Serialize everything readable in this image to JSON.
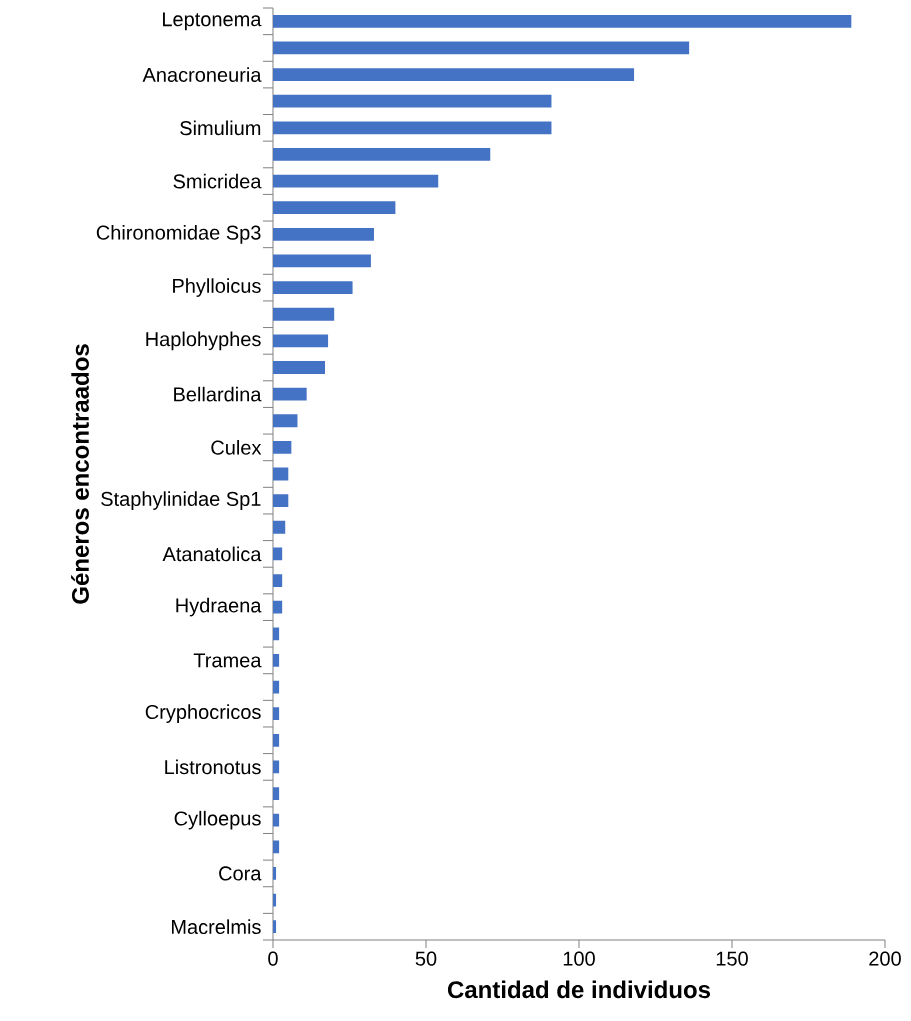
{
  "chart_data": {
    "type": "bar",
    "orientation": "horizontal",
    "xlabel": "Cantidad de individuos",
    "ylabel": "Géneros encontraados",
    "color": "#4472c4",
    "categories": [
      "Leptonema",
      null,
      "Anacroneuria",
      null,
      "Simulium",
      null,
      "Smicridea",
      null,
      "Chironomidae Sp3",
      null,
      "Phylloicus",
      null,
      "Haplohyphes",
      null,
      "Bellardina",
      null,
      "Culex",
      null,
      "Staphylinidae Sp1",
      null,
      "Atanatolica",
      null,
      "Hydraena",
      null,
      "Tramea",
      null,
      "Cryphocricos",
      null,
      "Listronotus",
      null,
      "Cylloepus",
      null,
      "Cora",
      null,
      "Macrelmis"
    ],
    "values": [
      189,
      136,
      118,
      91,
      91,
      71,
      54,
      40,
      33,
      32,
      26,
      20,
      18,
      17,
      11,
      8,
      6,
      5,
      5,
      4,
      3,
      3,
      3,
      2,
      2,
      2,
      2,
      2,
      2,
      2,
      2,
      2,
      1,
      1,
      1
    ],
    "xlim": [
      0,
      200
    ],
    "xticks": [
      0,
      50,
      100,
      150,
      200
    ],
    "grid": false
  }
}
